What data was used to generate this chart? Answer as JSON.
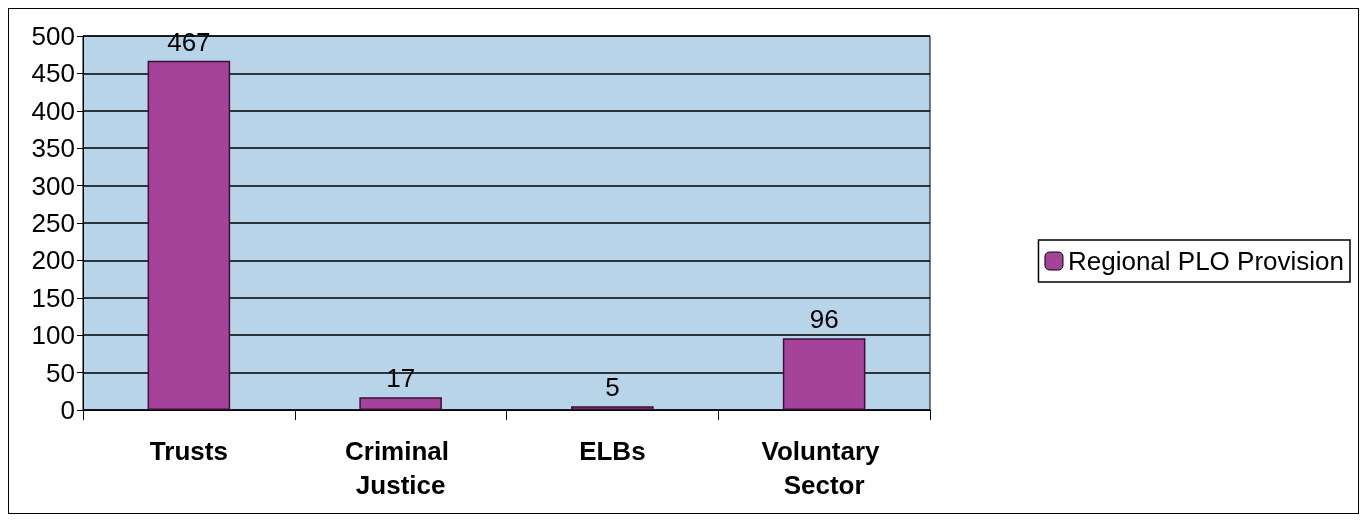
{
  "chart_data": {
    "type": "bar",
    "categories": [
      "Trusts",
      "Criminal Justice",
      "ELBs",
      "Voluntary Sector"
    ],
    "series": [
      {
        "name": "Regional PLO Provision",
        "color": "#a5429a",
        "values": [
          467,
          17,
          5,
          96
        ]
      }
    ],
    "ylim": [
      0,
      500
    ],
    "yticks": [
      0,
      50,
      100,
      150,
      200,
      250,
      300,
      350,
      400,
      450,
      500
    ],
    "grid": "y",
    "legend": "right",
    "data_labels": true
  }
}
